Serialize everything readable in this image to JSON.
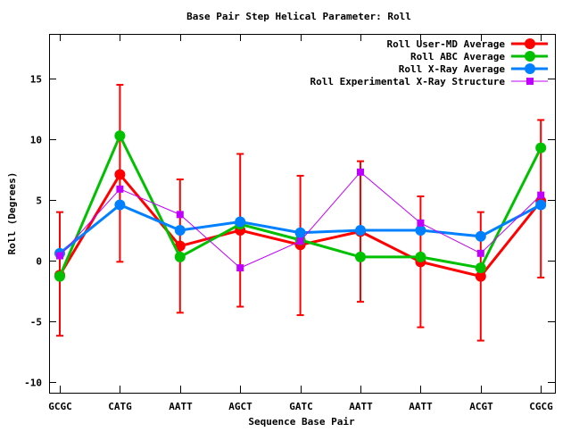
{
  "chart_data": {
    "type": "line",
    "title": "Base Pair Step Helical Parameter: Roll",
    "xlabel": "Sequence Base Pair",
    "ylabel": "Roll (Degrees)",
    "categories": [
      "GCGC",
      "CATG",
      "AATT",
      "AGCT",
      "GATC",
      "AATT",
      "AATT",
      "ACGT",
      "CGCG"
    ],
    "ylim": [
      -10.9,
      18.7
    ],
    "yticks": [
      -10,
      -5,
      0,
      5,
      10,
      15
    ],
    "legend_position": "top-right",
    "grid": false,
    "series": [
      {
        "name": "Roll User-MD Average",
        "color": "#ff0000",
        "marker": "circle",
        "values": [
          -1.2,
          7.1,
          1.2,
          2.5,
          1.3,
          2.4,
          -0.1,
          -1.3,
          4.9
        ],
        "error_low": [
          -6.2,
          -0.1,
          -4.3,
          -3.8,
          -4.5,
          -3.4,
          -5.5,
          -6.6,
          -1.4
        ],
        "error_high": [
          4.0,
          14.5,
          6.7,
          8.8,
          7.0,
          8.2,
          5.3,
          4.0,
          11.6
        ]
      },
      {
        "name": "Roll ABC Average",
        "color": "#00c000",
        "marker": "circle",
        "values": [
          -1.3,
          10.3,
          0.3,
          3.0,
          1.7,
          0.3,
          0.3,
          -0.6,
          9.3
        ]
      },
      {
        "name": "Roll X-Ray Average",
        "color": "#0080ff",
        "marker": "circle",
        "values": [
          0.6,
          4.6,
          2.5,
          3.2,
          2.3,
          2.5,
          2.5,
          2.0,
          4.6
        ]
      },
      {
        "name": "Roll Experimental X-Ray Structure",
        "color": "#c000ff",
        "marker": "square",
        "values": [
          0.4,
          5.9,
          3.8,
          -0.6,
          1.6,
          7.3,
          3.1,
          0.6,
          5.4
        ]
      }
    ]
  }
}
